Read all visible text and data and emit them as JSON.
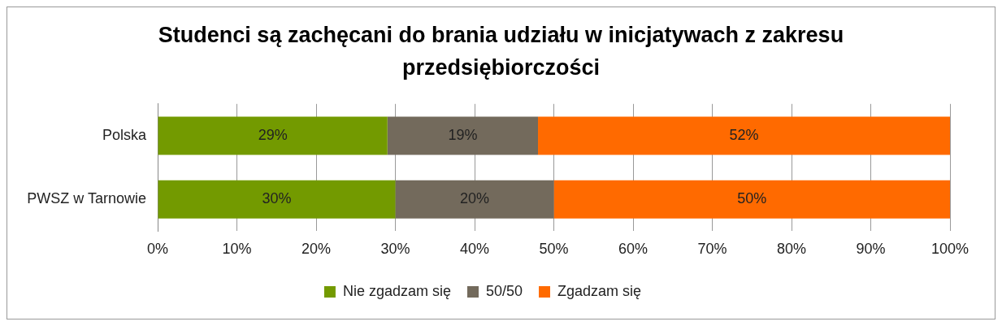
{
  "chart_data": {
    "type": "bar",
    "orientation": "horizontal",
    "stacked": true,
    "title": "Studenci są zachęcani do brania udziału w inicjatywach z zakresu przedsiębiorczości",
    "categories": [
      "Polska",
      "PWSZ w Tarnowie"
    ],
    "series": [
      {
        "name": "Nie zgadzam się",
        "color": "#739a00",
        "values": [
          29,
          30
        ],
        "value_labels": [
          "29%",
          "30%"
        ]
      },
      {
        "name": "50/50",
        "color": "#736a5c",
        "values": [
          19,
          20
        ],
        "value_labels": [
          "19%",
          "20%"
        ]
      },
      {
        "name": "Zgadzam się",
        "color": "#ff6a00",
        "values": [
          52,
          50
        ],
        "value_labels": [
          "52%",
          "50%"
        ]
      }
    ],
    "xlim": [
      0,
      100
    ],
    "xticks": [
      {
        "value": 0,
        "label": "0%"
      },
      {
        "value": 10,
        "label": "10%"
      },
      {
        "value": 20,
        "label": "20%"
      },
      {
        "value": 30,
        "label": "30%"
      },
      {
        "value": 40,
        "label": "40%"
      },
      {
        "value": 50,
        "label": "50%"
      },
      {
        "value": 60,
        "label": "60%"
      },
      {
        "value": 70,
        "label": "70%"
      },
      {
        "value": 80,
        "label": "80%"
      },
      {
        "value": 90,
        "label": "90%"
      },
      {
        "value": 100,
        "label": "100%"
      }
    ],
    "grid": "x",
    "legend": "bottom"
  }
}
